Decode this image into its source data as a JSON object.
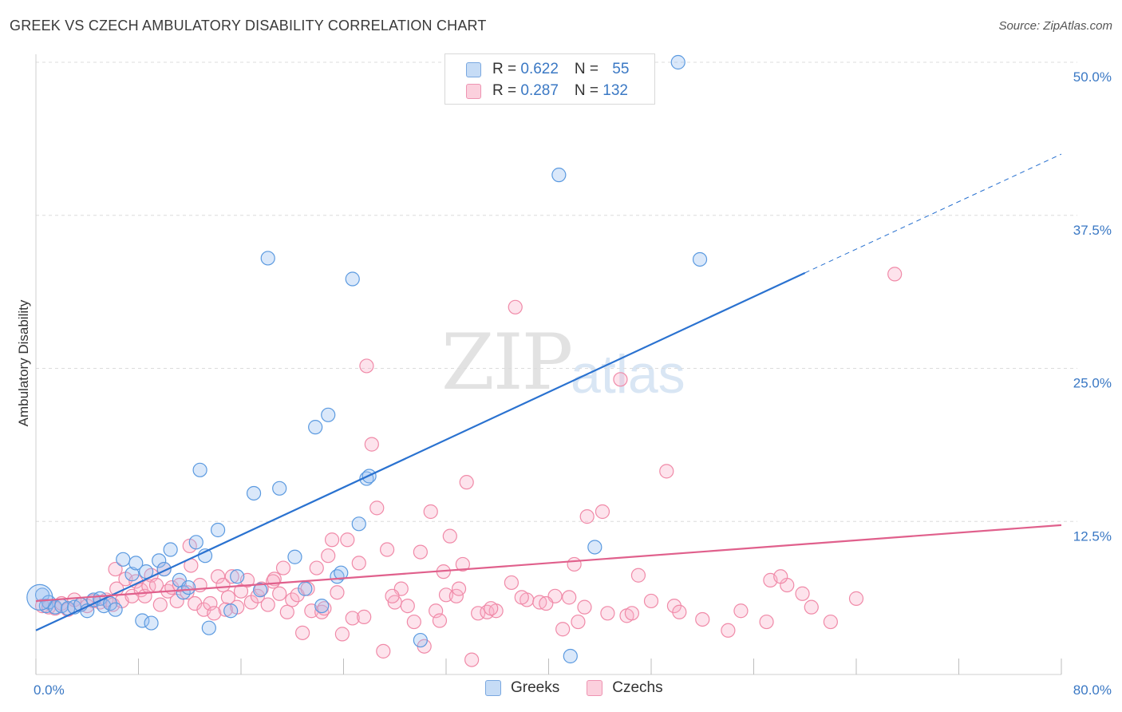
{
  "title": "GREEK VS CZECH AMBULATORY DISABILITY CORRELATION CHART",
  "source": "Source: ZipAtlas.com",
  "watermark": {
    "zip": "ZIP",
    "atlas": "atlas"
  },
  "legend": {
    "rows": [
      {
        "r_label": "R = ",
        "r_value": "0.622",
        "n_label": "N = ",
        "n_value": "55",
        "color": "#a8c8f0"
      },
      {
        "r_label": "R = ",
        "r_value": "0.287",
        "n_label": "N = ",
        "n_value": "132",
        "color": "#f8b8cc"
      }
    ]
  },
  "bottom_legend": [
    {
      "label": "Greeks",
      "color": "#a8c8f0"
    },
    {
      "label": "Czechs",
      "color": "#f8b8cc"
    }
  ],
  "chart_data": {
    "type": "scatter",
    "title": "GREEK VS CZECH AMBULATORY DISABILITY CORRELATION CHART",
    "xlabel": "",
    "ylabel": "Ambulatory Disability",
    "xlim": [
      0,
      80
    ],
    "ylim": [
      0,
      50
    ],
    "x_tick_labels": [
      "0.0%",
      "80.0%"
    ],
    "y_ticks": [
      12.5,
      25.0,
      37.5,
      50.0
    ],
    "y_tick_labels": [
      "12.5%",
      "25.0%",
      "37.5%",
      "50.0%"
    ],
    "grid": "horizontal dashed",
    "legend_position": "top-center",
    "colors": {
      "greeks": "#5b9ae0",
      "greeks_line": "#2a72d0",
      "czechs": "#f08aa8",
      "czechs_line": "#e0608c"
    },
    "series": [
      {
        "name": "Greeks",
        "trend": {
          "x": [
            0,
            60
          ],
          "y": [
            3.6,
            32.8
          ],
          "dashed_to": [
            80,
            42.5
          ]
        },
        "points": [
          [
            0.5,
            6.5
          ],
          [
            0.8,
            5.6
          ],
          [
            1.0,
            5.9
          ],
          [
            1.5,
            5.5
          ],
          [
            2.0,
            5.6
          ],
          [
            2.5,
            5.4
          ],
          [
            3.0,
            5.5
          ],
          [
            3.5,
            5.7
          ],
          [
            4.0,
            5.2
          ],
          [
            4.5,
            6.1
          ],
          [
            5.0,
            6.2
          ],
          [
            5.3,
            5.6
          ],
          [
            5.8,
            5.8
          ],
          [
            6.2,
            5.3
          ],
          [
            6.8,
            9.4
          ],
          [
            7.5,
            8.2
          ],
          [
            7.8,
            9.1
          ],
          [
            8.3,
            4.4
          ],
          [
            8.6,
            8.4
          ],
          [
            9.0,
            4.2
          ],
          [
            9.6,
            9.3
          ],
          [
            10.0,
            8.6
          ],
          [
            10.5,
            10.2
          ],
          [
            11.2,
            7.7
          ],
          [
            11.5,
            6.7
          ],
          [
            11.9,
            7.1
          ],
          [
            12.5,
            10.8
          ],
          [
            12.8,
            16.7
          ],
          [
            13.2,
            9.7
          ],
          [
            13.5,
            3.8
          ],
          [
            14.2,
            11.8
          ],
          [
            15.2,
            5.2
          ],
          [
            15.7,
            8.0
          ],
          [
            17.0,
            14.8
          ],
          [
            17.5,
            6.9
          ],
          [
            18.1,
            34.0
          ],
          [
            19.0,
            15.2
          ],
          [
            20.2,
            9.6
          ],
          [
            21.0,
            7.0
          ],
          [
            21.8,
            20.2
          ],
          [
            22.3,
            5.6
          ],
          [
            22.8,
            21.2
          ],
          [
            23.5,
            8.0
          ],
          [
            23.8,
            8.3
          ],
          [
            24.7,
            32.3
          ],
          [
            25.2,
            12.3
          ],
          [
            25.8,
            16.0
          ],
          [
            26.0,
            16.2
          ],
          [
            30.0,
            2.8
          ],
          [
            40.8,
            40.8
          ],
          [
            41.7,
            1.5
          ],
          [
            43.6,
            10.4
          ],
          [
            50.1,
            50.0
          ],
          [
            51.8,
            33.9
          ],
          [
            0.3,
            6.3
          ]
        ]
      },
      {
        "name": "Czechs",
        "trend": {
          "x": [
            0,
            80
          ],
          "y": [
            6.0,
            12.2
          ]
        },
        "points": [
          [
            0.5,
            5.6
          ],
          [
            1.0,
            5.5
          ],
          [
            1.5,
            5.4
          ],
          [
            2.0,
            5.8
          ],
          [
            2.5,
            5.3
          ],
          [
            3.0,
            6.1
          ],
          [
            3.5,
            5.7
          ],
          [
            4.0,
            5.6
          ],
          [
            4.5,
            6.0
          ],
          [
            5.0,
            5.9
          ],
          [
            5.5,
            6.1
          ],
          [
            6.0,
            5.7
          ],
          [
            6.3,
            7.0
          ],
          [
            6.7,
            6.0
          ],
          [
            7.0,
            7.8
          ],
          [
            7.5,
            6.4
          ],
          [
            7.8,
            7.6
          ],
          [
            8.2,
            6.9
          ],
          [
            8.5,
            6.4
          ],
          [
            8.8,
            7.2
          ],
          [
            9.0,
            8.1
          ],
          [
            9.4,
            7.3
          ],
          [
            9.7,
            5.7
          ],
          [
            10.0,
            8.6
          ],
          [
            10.3,
            6.8
          ],
          [
            10.6,
            7.1
          ],
          [
            11.0,
            6.0
          ],
          [
            11.2,
            7.3
          ],
          [
            11.8,
            6.7
          ],
          [
            12.1,
            8.9
          ],
          [
            12.4,
            5.8
          ],
          [
            12.8,
            7.3
          ],
          [
            13.1,
            5.3
          ],
          [
            13.6,
            5.8
          ],
          [
            13.9,
            5.0
          ],
          [
            14.2,
            8.0
          ],
          [
            14.6,
            7.3
          ],
          [
            15.0,
            6.3
          ],
          [
            15.3,
            8.0
          ],
          [
            15.7,
            5.5
          ],
          [
            16.0,
            6.8
          ],
          [
            16.5,
            7.7
          ],
          [
            16.8,
            5.9
          ],
          [
            17.3,
            6.4
          ],
          [
            17.6,
            7.0
          ],
          [
            18.1,
            5.7
          ],
          [
            18.6,
            7.8
          ],
          [
            19.0,
            6.6
          ],
          [
            19.3,
            8.7
          ],
          [
            19.6,
            5.1
          ],
          [
            20.0,
            6.1
          ],
          [
            20.4,
            6.5
          ],
          [
            20.8,
            3.4
          ],
          [
            21.2,
            7.0
          ],
          [
            21.5,
            5.2
          ],
          [
            21.9,
            8.7
          ],
          [
            22.3,
            5.1
          ],
          [
            22.8,
            9.7
          ],
          [
            23.1,
            11.0
          ],
          [
            23.5,
            6.7
          ],
          [
            23.9,
            3.3
          ],
          [
            24.3,
            11.0
          ],
          [
            24.7,
            4.6
          ],
          [
            25.2,
            9.1
          ],
          [
            25.6,
            4.7
          ],
          [
            26.2,
            18.8
          ],
          [
            26.6,
            13.6
          ],
          [
            27.1,
            1.9
          ],
          [
            27.4,
            10.2
          ],
          [
            28.0,
            5.9
          ],
          [
            28.5,
            7.0
          ],
          [
            29.0,
            5.6
          ],
          [
            29.5,
            4.3
          ],
          [
            30.0,
            10.0
          ],
          [
            30.3,
            2.3
          ],
          [
            30.8,
            13.3
          ],
          [
            31.2,
            5.2
          ],
          [
            31.5,
            4.4
          ],
          [
            32.0,
            6.5
          ],
          [
            32.3,
            11.3
          ],
          [
            32.8,
            6.4
          ],
          [
            33.3,
            9.0
          ],
          [
            33.6,
            15.7
          ],
          [
            34.0,
            1.2
          ],
          [
            34.5,
            5.0
          ],
          [
            35.2,
            5.1
          ],
          [
            35.9,
            5.2
          ],
          [
            37.1,
            7.5
          ],
          [
            37.4,
            30.0
          ],
          [
            38.3,
            6.1
          ],
          [
            39.3,
            5.9
          ],
          [
            40.5,
            6.4
          ],
          [
            41.1,
            3.7
          ],
          [
            41.6,
            6.3
          ],
          [
            42.3,
            4.3
          ],
          [
            42.8,
            5.5
          ],
          [
            43.0,
            12.9
          ],
          [
            44.2,
            13.3
          ],
          [
            44.6,
            5.0
          ],
          [
            45.6,
            24.1
          ],
          [
            46.1,
            4.8
          ],
          [
            46.5,
            5.0
          ],
          [
            47.0,
            8.1
          ],
          [
            49.2,
            16.6
          ],
          [
            49.8,
            5.6
          ],
          [
            50.2,
            5.1
          ],
          [
            54.0,
            3.6
          ],
          [
            57.0,
            4.3
          ],
          [
            57.3,
            7.7
          ],
          [
            58.6,
            7.3
          ],
          [
            59.8,
            6.6
          ],
          [
            62.0,
            4.3
          ],
          [
            67.0,
            32.7
          ],
          [
            58.1,
            8.0
          ],
          [
            37.9,
            6.3
          ],
          [
            25.8,
            25.2
          ],
          [
            33.0,
            7.0
          ],
          [
            14.8,
            5.3
          ],
          [
            22.5,
            5.4
          ],
          [
            12.0,
            10.5
          ],
          [
            18.5,
            7.6
          ],
          [
            27.8,
            6.4
          ],
          [
            31.8,
            8.4
          ],
          [
            35.5,
            5.4
          ],
          [
            39.8,
            5.8
          ],
          [
            42.0,
            9.0
          ],
          [
            48.0,
            6.0
          ],
          [
            52.0,
            4.5
          ],
          [
            55.0,
            5.2
          ],
          [
            60.5,
            5.5
          ],
          [
            64.0,
            6.2
          ],
          [
            6.2,
            8.6
          ]
        ]
      }
    ]
  }
}
